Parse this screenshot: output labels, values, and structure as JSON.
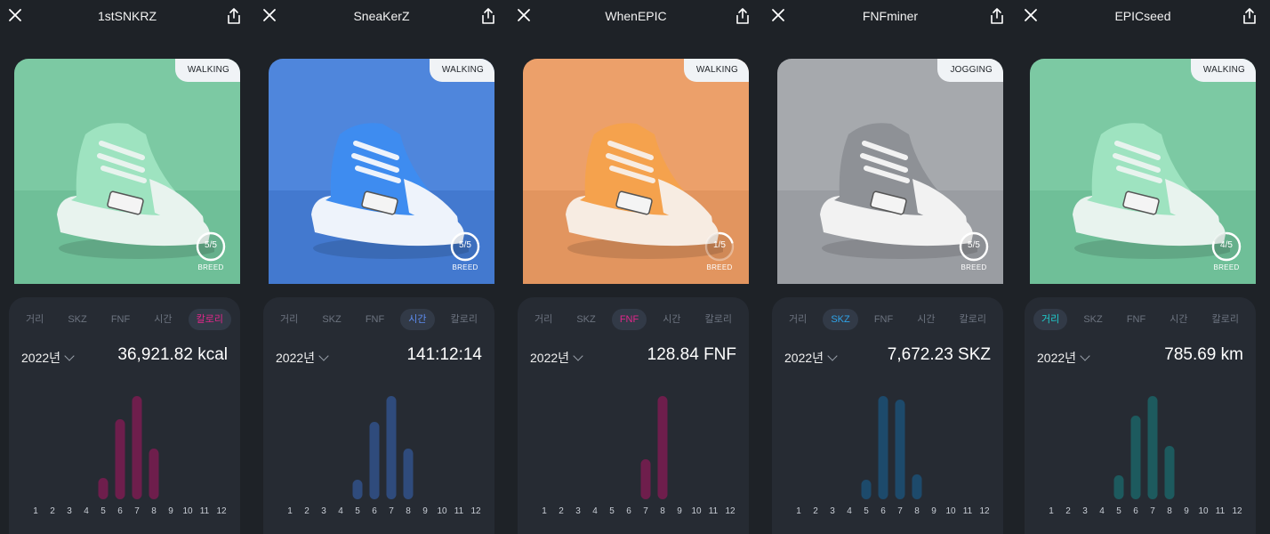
{
  "panels": [
    {
      "title": "1stSNKRZ",
      "tag": "WALKING",
      "card_colors": {
        "bg": "#7cc9a3",
        "floor": "#6fbf98",
        "shoe": "#9ee3c0",
        "accent": "#e8f3ee"
      },
      "breed": {
        "count": "5/5",
        "fraction": 1.0,
        "label": "BREED"
      },
      "tabs": [
        "거리",
        "SKZ",
        "FNF",
        "시간",
        "칼로리"
      ],
      "active_tab": 4,
      "active_color": "#e0278a",
      "year": "2022년",
      "value": "36,921.82 kcal",
      "chart_data": {
        "type": "bar",
        "categories": [
          "1",
          "2",
          "3",
          "4",
          "5",
          "6",
          "7",
          "8",
          "9",
          "10",
          "11",
          "12"
        ],
        "values": [
          0,
          0,
          0,
          0,
          24,
          90,
          116,
          57,
          0,
          0,
          0,
          0
        ],
        "color": "#6e1e4c"
      }
    },
    {
      "title": "SneaKerZ",
      "tag": "WALKING",
      "card_colors": {
        "bg": "#4f86dc",
        "floor": "#4379cf",
        "shoe": "#3e8cf0",
        "accent": "#eef3fb"
      },
      "breed": {
        "count": "5/5",
        "fraction": 1.0,
        "label": "BREED"
      },
      "tabs": [
        "거리",
        "SKZ",
        "FNF",
        "시간",
        "칼로리"
      ],
      "active_tab": 3,
      "active_color": "#5d8cf0",
      "year": "2022년",
      "value": "141:12:14",
      "chart_data": {
        "type": "bar",
        "categories": [
          "1",
          "2",
          "3",
          "4",
          "5",
          "6",
          "7",
          "8",
          "9",
          "10",
          "11",
          "12"
        ],
        "values": [
          0,
          0,
          0,
          0,
          22,
          87,
          116,
          57,
          0,
          0,
          0,
          0
        ],
        "color": "#2f4b7c"
      }
    },
    {
      "title": "WhenEPIC",
      "tag": "WALKING",
      "card_colors": {
        "bg": "#eca06a",
        "floor": "#e2955f",
        "shoe": "#f5a24d",
        "accent": "#f7ece2"
      },
      "breed": {
        "count": "1/5",
        "fraction": 0.2,
        "label": "BREED"
      },
      "tabs": [
        "거리",
        "SKZ",
        "FNF",
        "시간",
        "칼로리"
      ],
      "active_tab": 2,
      "active_color": "#e0278a",
      "year": "2022년",
      "value": "128.84 FNF",
      "chart_data": {
        "type": "bar",
        "categories": [
          "1",
          "2",
          "3",
          "4",
          "5",
          "6",
          "7",
          "8",
          "9",
          "10",
          "11",
          "12"
        ],
        "values": [
          0,
          0,
          0,
          0,
          0,
          0,
          45,
          116,
          0,
          0,
          0,
          0
        ],
        "color": "#6e1e4c"
      }
    },
    {
      "title": "FNFminer",
      "tag": "JOGGING",
      "card_colors": {
        "bg": "#a6a9ad",
        "floor": "#9a9da2",
        "shoe": "#8e9196",
        "accent": "#f2f2f2"
      },
      "breed": {
        "count": "5/5",
        "fraction": 1.0,
        "label": "BREED"
      },
      "tabs": [
        "거리",
        "SKZ",
        "FNF",
        "시간",
        "칼로리"
      ],
      "active_tab": 1,
      "active_color": "#2fa3e8",
      "year": "2022년",
      "value": "7,672.23 SKZ",
      "chart_data": {
        "type": "bar",
        "categories": [
          "1",
          "2",
          "3",
          "4",
          "5",
          "6",
          "7",
          "8",
          "9",
          "10",
          "11",
          "12"
        ],
        "values": [
          0,
          0,
          0,
          0,
          22,
          116,
          112,
          28,
          0,
          0,
          0,
          0
        ],
        "color": "#1d4a6b"
      }
    },
    {
      "title": "EPICseed",
      "tag": "WALKING",
      "card_colors": {
        "bg": "#7cc9a3",
        "floor": "#6fbf98",
        "shoe": "#9ee3c0",
        "accent": "#e8f3ee"
      },
      "breed": {
        "count": "4/5",
        "fraction": 0.8,
        "label": "BREED"
      },
      "tabs": [
        "거리",
        "SKZ",
        "FNF",
        "시간",
        "칼로리"
      ],
      "active_tab": 0,
      "active_color": "#1ed0d0",
      "year": "2022년",
      "value": "785.69 km",
      "chart_data": {
        "type": "bar",
        "categories": [
          "1",
          "2",
          "3",
          "4",
          "5",
          "6",
          "7",
          "8",
          "9",
          "10",
          "11",
          "12"
        ],
        "values": [
          0,
          0,
          0,
          0,
          27,
          94,
          116,
          60,
          0,
          0,
          0,
          0
        ],
        "color": "#1d5a5e"
      }
    }
  ]
}
